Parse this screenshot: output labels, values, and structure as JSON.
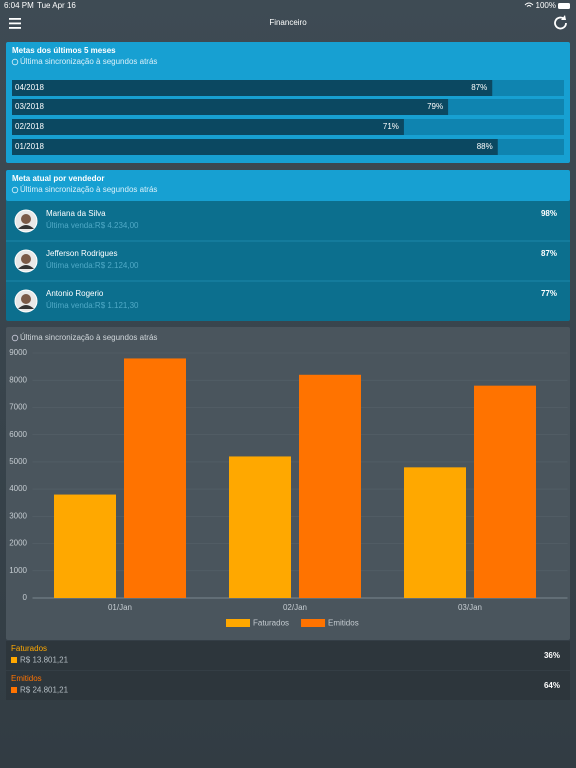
{
  "status_bar": {
    "time": "6:04 PM",
    "date": "Tue Apr 16",
    "battery": "100%"
  },
  "header": {
    "title": "Financeiro"
  },
  "goals": {
    "title": "Metas dos últimos 5 meses",
    "sync": "Última sincronização à segundos atrás",
    "items": [
      {
        "label": "04/2018",
        "value": 87,
        "value_label": "87%"
      },
      {
        "label": "03/2018",
        "value": 79,
        "value_label": "79%"
      },
      {
        "label": "02/2018",
        "value": 71,
        "value_label": "71%"
      },
      {
        "label": "01/2018",
        "value": 88,
        "value_label": "88%"
      }
    ]
  },
  "sellers": {
    "title": "Meta atual por vendedor",
    "sync": "Última sincronização à segundos atrás",
    "items": [
      {
        "name": "Mariana da Silva",
        "last_sale": "Última venda:R$ 4.234,00",
        "percent": "98%"
      },
      {
        "name": "Jefferson Rodrigues",
        "last_sale": "Última venda:R$ 2.124,00",
        "percent": "87%"
      },
      {
        "name": "Antonio Rogerio",
        "last_sale": "Última venda:R$ 1.121,30",
        "percent": "77%"
      }
    ]
  },
  "chart_data": {
    "type": "bar",
    "subtitle": "Última sincronização à segundos atrás",
    "categories": [
      "01/Jan",
      "02/Jan",
      "03/Jan"
    ],
    "series": [
      {
        "name": "Faturados",
        "color": "#ffa800",
        "values": [
          3800,
          5200,
          4800
        ]
      },
      {
        "name": "Emitidos",
        "color": "#ff7300",
        "values": [
          8800,
          8200,
          7800
        ]
      }
    ],
    "ylim": [
      0,
      9000
    ],
    "yticks": [
      0,
      1000,
      2000,
      3000,
      4000,
      5000,
      6000,
      7000,
      8000,
      9000
    ],
    "grid": true,
    "legend": "bottom"
  },
  "summary": {
    "items": [
      {
        "name": "Faturados",
        "amount": "R$ 13.801,21",
        "percent": "36%"
      },
      {
        "name": "Emitidos",
        "amount": "R$ 24.801,21",
        "percent": "64%"
      }
    ]
  }
}
